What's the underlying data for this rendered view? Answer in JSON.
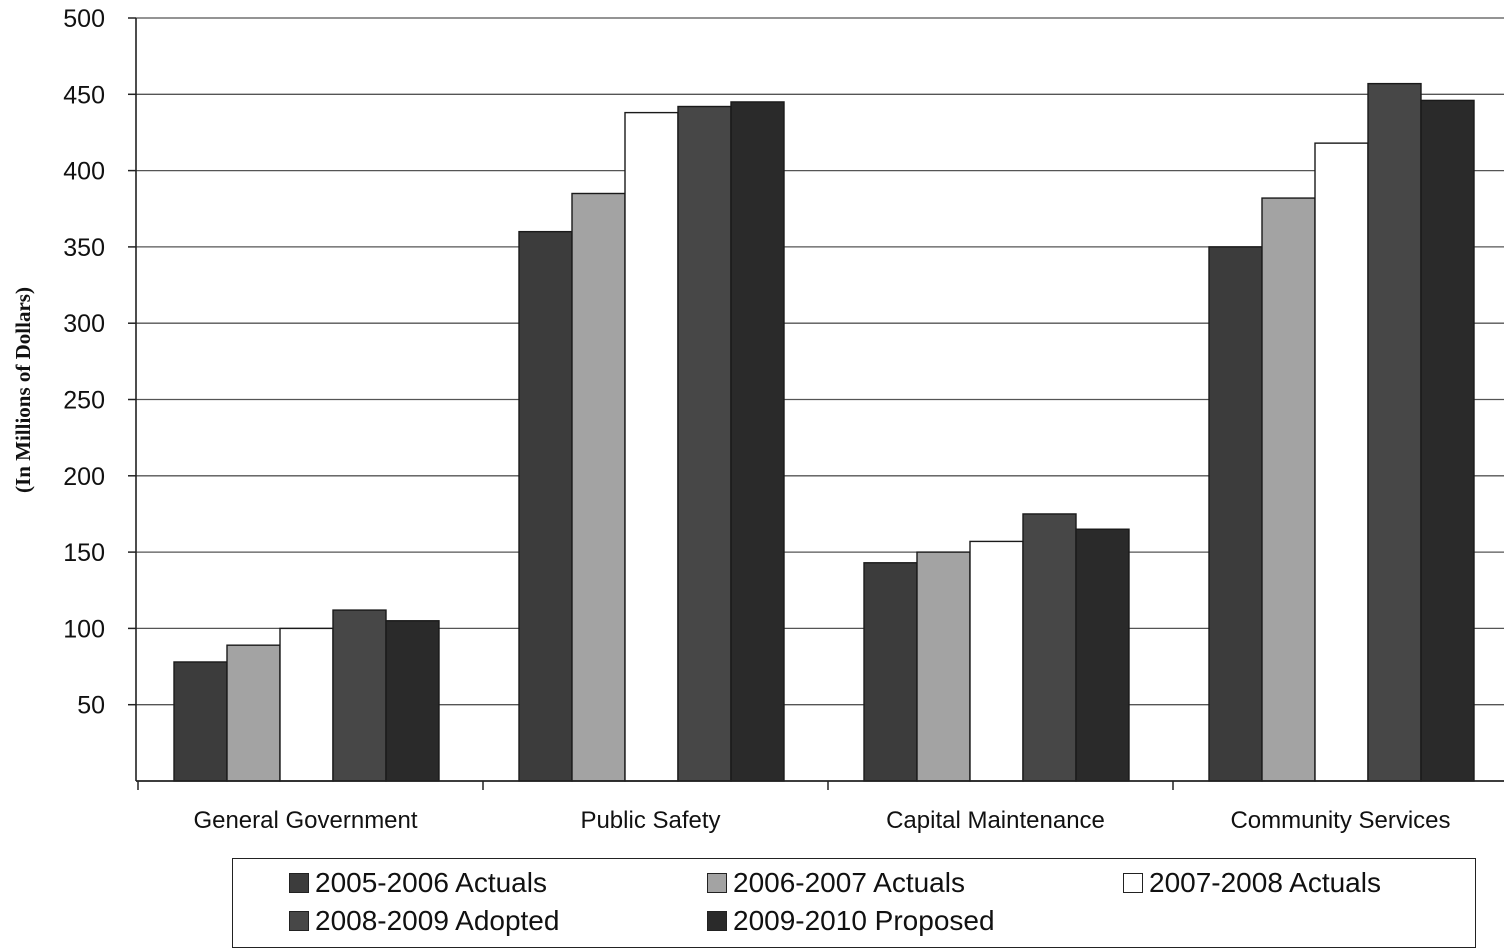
{
  "chart_data": {
    "type": "bar",
    "title": "",
    "xlabel": "",
    "ylabel": "(In Millions of Dollars)",
    "ylim": [
      0,
      500
    ],
    "yticks": [
      50,
      100,
      150,
      200,
      250,
      300,
      350,
      400,
      450,
      500
    ],
    "grid": true,
    "legend_position": "bottom",
    "categories": [
      "General Government",
      "Public Safety",
      "Capital Maintenance",
      "Community Services"
    ],
    "series": [
      {
        "name": "2005-2006 Actuals",
        "color": "#3c3c3c",
        "values": [
          78,
          360,
          143,
          350
        ]
      },
      {
        "name": "2006-2007 Actuals",
        "color": "#a3a3a3",
        "values": [
          89,
          385,
          150,
          382
        ]
      },
      {
        "name": "2007-2008 Actuals",
        "color": "#ffffff",
        "values": [
          100,
          438,
          157,
          418
        ]
      },
      {
        "name": "2008-2009 Adopted",
        "color": "#474747",
        "values": [
          112,
          442,
          175,
          457
        ]
      },
      {
        "name": "2009-2010 Proposed",
        "color": "#2a2a2a",
        "values": [
          105,
          445,
          165,
          446
        ]
      }
    ]
  }
}
